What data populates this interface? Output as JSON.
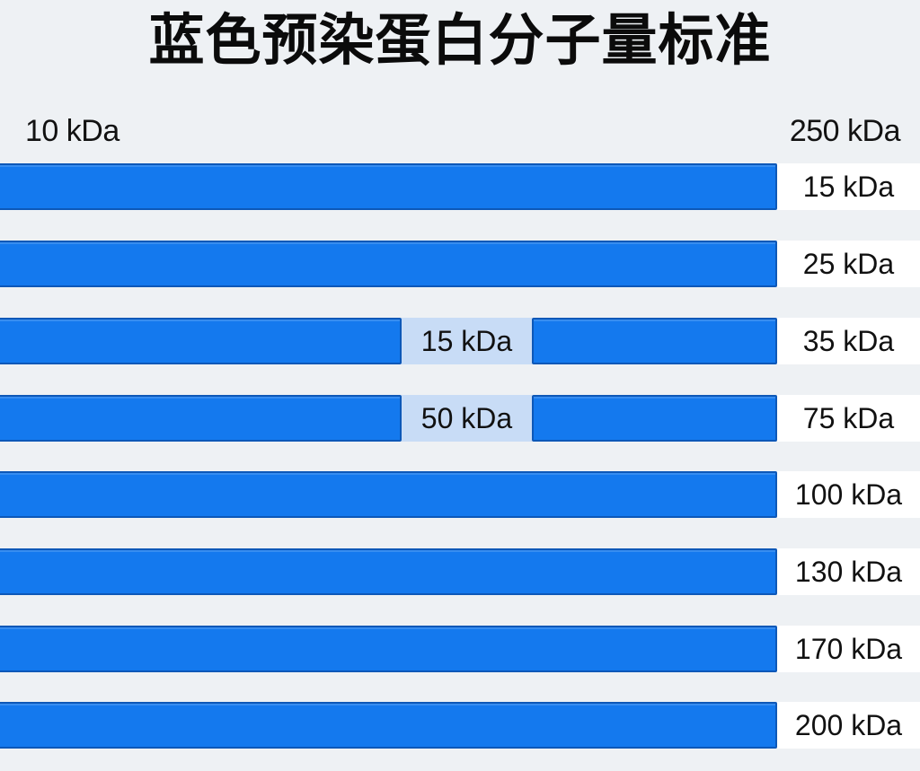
{
  "title": "蓝色预染蛋白分子量标准",
  "range": {
    "min_label": "10 kDa",
    "max_label": "250 kDa"
  },
  "colors": {
    "band": "#1479ee",
    "band_border": "#0d58b8",
    "gap_label_bg": "#c8dcf6",
    "background": "#eef1f4"
  },
  "bands": [
    {
      "label": "15 kDa"
    },
    {
      "label": "25 kDa"
    },
    {
      "label": "35 kDa",
      "inset_label": "15 kDa"
    },
    {
      "label": "75 kDa",
      "inset_label": "50 kDa"
    },
    {
      "label": "100 kDa"
    },
    {
      "label": "130 kDa"
    },
    {
      "label": "170 kDa"
    },
    {
      "label": "200 kDa"
    }
  ]
}
